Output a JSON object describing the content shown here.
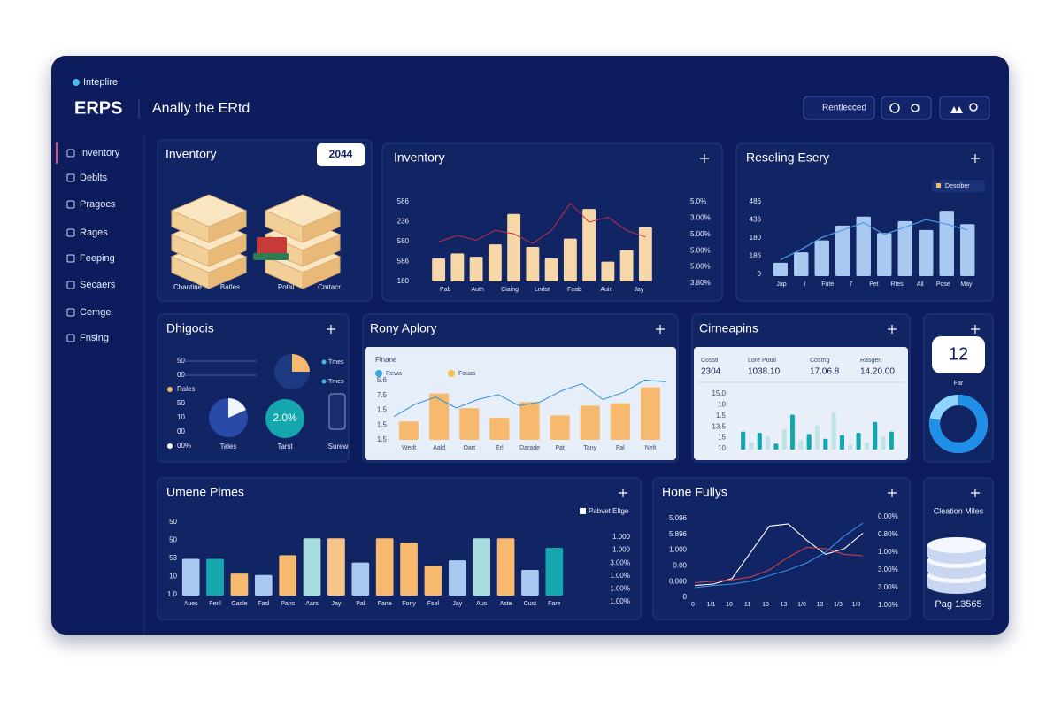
{
  "header": {
    "logo": "Inteplire",
    "brand": "ERPS",
    "subtitle": "Anally the ERtd",
    "button": "Rentlecced"
  },
  "sidebar": {
    "items": [
      "Inventory",
      "Deblts",
      "Pragocs",
      "Rages",
      "Feeping",
      "Secaers",
      "Cemge",
      "Fnsing"
    ],
    "active": 0
  },
  "inventory": {
    "title": "Inventory",
    "badge": "2044",
    "labels": [
      "Chantine",
      "Batles",
      "Potal",
      "Cmtacr"
    ]
  },
  "inventory_chart": {
    "title": "Inventory",
    "color": "#f7d7a8",
    "line_color": "#c0304a",
    "ylim": [
      0,
      100
    ],
    "values": [
      28,
      34,
      30,
      45,
      82,
      42,
      28,
      52,
      88,
      24,
      38,
      66
    ],
    "line": [
      48,
      56,
      50,
      62,
      58,
      46,
      62,
      95,
      72,
      78,
      62,
      54
    ],
    "y_labels": [
      "586",
      "236",
      "580",
      "586",
      "180"
    ],
    "y2_labels": [
      "5.0%",
      "3.00%",
      "5.00%",
      "5.00%",
      "5.00%",
      "3.80%"
    ],
    "x_labels": [
      "Pab",
      "Auth",
      "Ciaing",
      "Lndst",
      "Feab",
      "Auin",
      "Jay"
    ]
  },
  "reseling": {
    "title": "Reseling Esery",
    "legend": "Desciber",
    "color": "#a9c9f0",
    "line_color": "#4a9be8",
    "ylim": [
      0,
      100
    ],
    "values": [
      18,
      32,
      48,
      68,
      80,
      58,
      74,
      62,
      88,
      70
    ],
    "line": [
      22,
      36,
      52,
      62,
      72,
      56,
      66,
      76,
      70,
      62
    ],
    "y_labels": [
      "486",
      "436",
      "180",
      "186",
      "0"
    ],
    "x_labels": [
      "Jap",
      "I",
      "Fute",
      "7",
      "Pet",
      "Rtes",
      "Ail",
      "Pose",
      "May"
    ]
  },
  "diagnostics": {
    "title": "Dhigocis",
    "rows": [
      "50",
      "00",
      "Rales",
      "50",
      "10",
      "00",
      "00%"
    ],
    "tags": [
      "Tmes",
      "Tmes"
    ],
    "center": "2.0%",
    "labels": [
      "Tales",
      "Tarst",
      "Surew"
    ]
  },
  "rony": {
    "title": "Rony Aplory",
    "legend_title": "Finane",
    "legend": [
      "Rewa",
      "Fouas"
    ],
    "color": "#f6b96e",
    "line_color": "#2f8fd8",
    "ylim": [
      0,
      100
    ],
    "values": [
      30,
      76,
      52,
      36,
      62,
      40,
      56,
      60,
      86
    ],
    "line": [
      38,
      58,
      70,
      52,
      66,
      74,
      56,
      62,
      80,
      92,
      66,
      78,
      98,
      95
    ],
    "y_labels": [
      "5.6",
      "7.5",
      "1.5",
      "1.5",
      "1.5"
    ],
    "x_labels": [
      "Wedt",
      "Aald",
      "Oart",
      "Erl",
      "Darade",
      "Pat",
      "Tany",
      "Fal",
      "Nelt"
    ]
  },
  "cirneapins": {
    "title": "Cirneapins",
    "headers": [
      "Cosstl",
      "Lore Potal",
      "Cosrng",
      "Rasgen"
    ],
    "cells": [
      "2304",
      "1038.10",
      "17.06.8",
      "14.20.00"
    ],
    "colors": [
      "#14a7ae",
      "#bfe2e6"
    ],
    "ylim": [
      0,
      100
    ],
    "values": [
      30,
      12,
      28,
      22,
      10,
      34,
      58,
      16,
      26,
      40,
      18,
      62,
      24,
      8,
      28,
      12,
      46,
      22,
      30
    ],
    "y_labels": [
      "15.0",
      "10",
      "1.5",
      "13.5",
      "15",
      "10"
    ]
  },
  "counter": {
    "value": "12",
    "label": "Far",
    "donut": 78,
    "color": "#1f8fe8"
  },
  "umene": {
    "title": "Umene Pimes",
    "legend": "Pabvet Eltge",
    "ylim": [
      0,
      100
    ],
    "values": [
      50,
      50,
      30,
      28,
      55,
      78,
      78,
      45,
      78,
      72,
      40,
      48,
      78,
      78,
      35,
      65
    ],
    "colors": [
      "#a9c9f0",
      "#14a7ae",
      "#f6b96e",
      "#a9c9f0",
      "#f6b96e",
      "#a8dde0",
      "#f6c488",
      "#a9c9f0",
      "#f6b96e",
      "#f6b96e",
      "#f6b96e",
      "#a9c9f0",
      "#a8dde0",
      "#f6b96e",
      "#a9c9f0",
      "#14a7ae"
    ],
    "y_labels": [
      "50",
      "50",
      "53",
      "10",
      "1.0"
    ],
    "y2_labels": [
      "1.000",
      "1.000",
      "3.00%",
      "1.00%",
      "1.00%",
      "1.00%"
    ],
    "x_labels": [
      "Aues",
      "Fenl",
      "Gasle",
      "Fasl",
      "Pans",
      "Aars",
      "Jay",
      "Pal",
      "Fane",
      "Fony",
      "Fsel",
      "Jay",
      "Aus",
      "Aste",
      "Cust",
      "Fare"
    ]
  },
  "hone": {
    "title": "Hone Fullys",
    "ylim": [
      0,
      100
    ],
    "series": [
      {
        "color": "#ffffff",
        "values": [
          8,
          10,
          18,
          55,
          92,
          95,
          72,
          52,
          60,
          82
        ]
      },
      {
        "color": "#3a8ee6",
        "values": [
          5,
          8,
          10,
          14,
          22,
          30,
          40,
          55,
          78,
          96
        ]
      },
      {
        "color": "#d0404a",
        "values": [
          12,
          14,
          16,
          20,
          30,
          48,
          62,
          60,
          52,
          50
        ]
      }
    ],
    "y_labels": [
      "5.096",
      "5.896",
      "1.000",
      "0.00",
      "0.000",
      "0"
    ],
    "y2_labels": [
      "0.00%",
      "0.80%",
      "1.00%",
      "3.00%",
      "3.00%",
      "1.00%"
    ],
    "x_labels": [
      "0",
      "1/1",
      "10",
      "11",
      "13",
      "13",
      "1/0",
      "13",
      "1/3",
      "1/0"
    ]
  },
  "storage": {
    "title": "Cleation Miles",
    "footer": "Pag 13565"
  }
}
